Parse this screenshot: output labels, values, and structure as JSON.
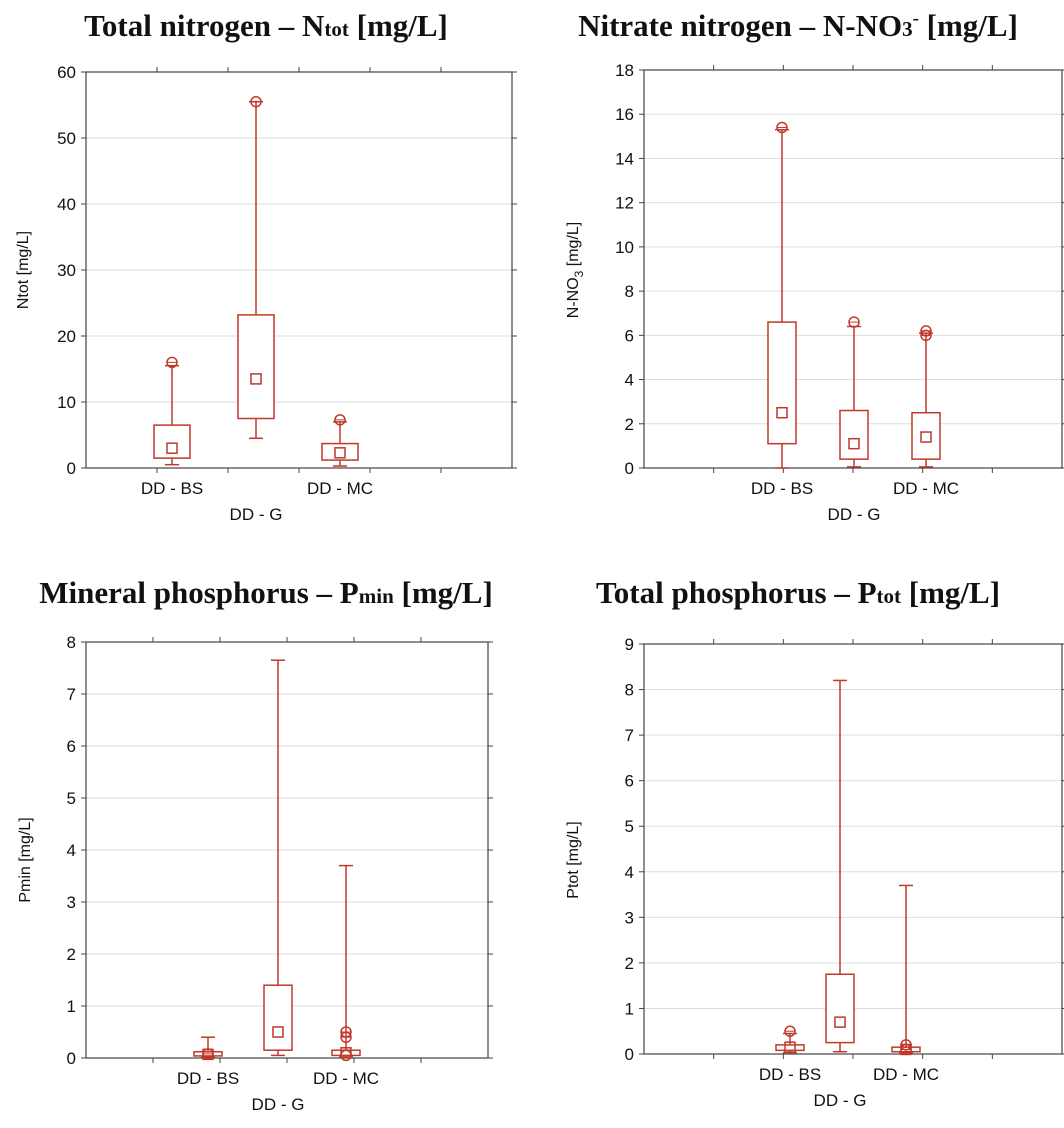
{
  "colors": {
    "box": "#c0392b",
    "axis": "#444444",
    "grid": "#dddddd"
  },
  "panels": [
    {
      "title": {
        "main": "Total nitrogen – N",
        "sub": "tot",
        "sup": "",
        "tail": " [mg/L]"
      },
      "ylabel": {
        "main": "Ntot [mg/L]",
        "sub": "",
        "tail": ""
      }
    },
    {
      "title": {
        "main": "Nitrate nitrogen – N-NO",
        "sub": "3",
        "sup": "-",
        "tail": " [mg/L]"
      },
      "ylabel": {
        "main": "N-NO",
        "sub": "3",
        "tail": " [mg/L]"
      }
    },
    {
      "title": {
        "main": "Mineral phosphorus – P",
        "sub": "min",
        "sup": "",
        "tail": " [mg/L]"
      },
      "ylabel": {
        "main": "Pmin [mg/L]",
        "sub": "",
        "tail": ""
      }
    },
    {
      "title": {
        "main": "Total phosphorus – P",
        "sub": "tot",
        "sup": "",
        "tail": " [mg/L]"
      },
      "ylabel": {
        "main": "Ptot [mg/L]",
        "sub": "",
        "tail": ""
      }
    }
  ],
  "chart_data": [
    {
      "type": "box",
      "title": "Total nitrogen – Ntot [mg/L]",
      "ylabel": "Ntot [mg/L]",
      "categories": [
        "DD - BS",
        "DD - G",
        "DD - MC"
      ],
      "ylim": [
        0,
        60
      ],
      "yticks": [
        0,
        10,
        20,
        30,
        40,
        50,
        60
      ],
      "grid": true,
      "boxes": [
        {
          "category": "DD - BS",
          "min": 0.5,
          "q1": 1.5,
          "median": 3.0,
          "q3": 6.5,
          "max": 15.5,
          "outliers": [
            16.0
          ]
        },
        {
          "category": "DD - G",
          "min": 4.5,
          "q1": 7.5,
          "median": 13.5,
          "q3": 23.2,
          "max": 55.5,
          "outliers": [
            55.5
          ]
        },
        {
          "category": "DD - MC",
          "min": 0.3,
          "q1": 1.2,
          "median": 2.3,
          "q3": 3.7,
          "max": 7.0,
          "outliers": [
            7.3
          ]
        }
      ]
    },
    {
      "type": "box",
      "title": "Nitrate nitrogen – N-NO3- [mg/L]",
      "ylabel": "N-NO3 [mg/L]",
      "categories": [
        "DD - BS",
        "DD - G",
        "DD - MC"
      ],
      "ylim": [
        0,
        18
      ],
      "yticks": [
        0,
        2,
        4,
        6,
        8,
        10,
        12,
        14,
        16,
        18
      ],
      "grid": true,
      "boxes": [
        {
          "category": "DD - BS",
          "min": 0.0,
          "q1": 1.1,
          "median": 2.5,
          "q3": 6.6,
          "max": 15.3,
          "outliers": [
            15.4
          ]
        },
        {
          "category": "DD - G",
          "min": 0.05,
          "q1": 0.4,
          "median": 1.1,
          "q3": 2.6,
          "max": 6.4,
          "outliers": [
            6.6
          ]
        },
        {
          "category": "DD - MC",
          "min": 0.05,
          "q1": 0.4,
          "median": 1.4,
          "q3": 2.5,
          "max": 6.1,
          "outliers": [
            6.0,
            6.2
          ]
        }
      ]
    },
    {
      "type": "box",
      "title": "Mineral phosphorus – Pmin [mg/L]",
      "ylabel": "Pmin [mg/L]",
      "categories": [
        "DD - BS",
        "DD - G",
        "DD - MC"
      ],
      "ylim": [
        0,
        8
      ],
      "yticks": [
        0,
        1,
        2,
        3,
        4,
        5,
        6,
        7,
        8
      ],
      "grid": true,
      "boxes": [
        {
          "category": "DD - BS",
          "min": 0.02,
          "q1": 0.04,
          "median": 0.07,
          "q3": 0.12,
          "max": 0.4,
          "outliers": [
            0.08
          ]
        },
        {
          "category": "DD - G",
          "min": 0.05,
          "q1": 0.15,
          "median": 0.5,
          "q3": 1.4,
          "max": 7.65,
          "outliers": []
        },
        {
          "category": "DD - MC",
          "min": 0.02,
          "q1": 0.05,
          "median": 0.1,
          "q3": 0.15,
          "max": 3.7,
          "outliers": [
            0.4,
            0.5,
            0.05
          ]
        }
      ]
    },
    {
      "type": "box",
      "title": "Total phosphorus – Ptot [mg/L]",
      "ylabel": "Ptot [mg/L]",
      "categories": [
        "DD - BS",
        "DD - G",
        "DD - MC"
      ],
      "ylim": [
        0,
        9
      ],
      "yticks": [
        0,
        1,
        2,
        3,
        4,
        5,
        6,
        7,
        8,
        9
      ],
      "grid": true,
      "boxes": [
        {
          "category": "DD - BS",
          "min": 0.03,
          "q1": 0.08,
          "median": 0.15,
          "q3": 0.2,
          "max": 0.45,
          "outliers": [
            0.5
          ]
        },
        {
          "category": "DD - G",
          "min": 0.05,
          "q1": 0.25,
          "median": 0.7,
          "q3": 1.75,
          "max": 8.2,
          "outliers": []
        },
        {
          "category": "DD - MC",
          "min": 0.02,
          "q1": 0.05,
          "median": 0.1,
          "q3": 0.15,
          "max": 3.7,
          "outliers": [
            0.1,
            0.2
          ]
        }
      ]
    }
  ]
}
